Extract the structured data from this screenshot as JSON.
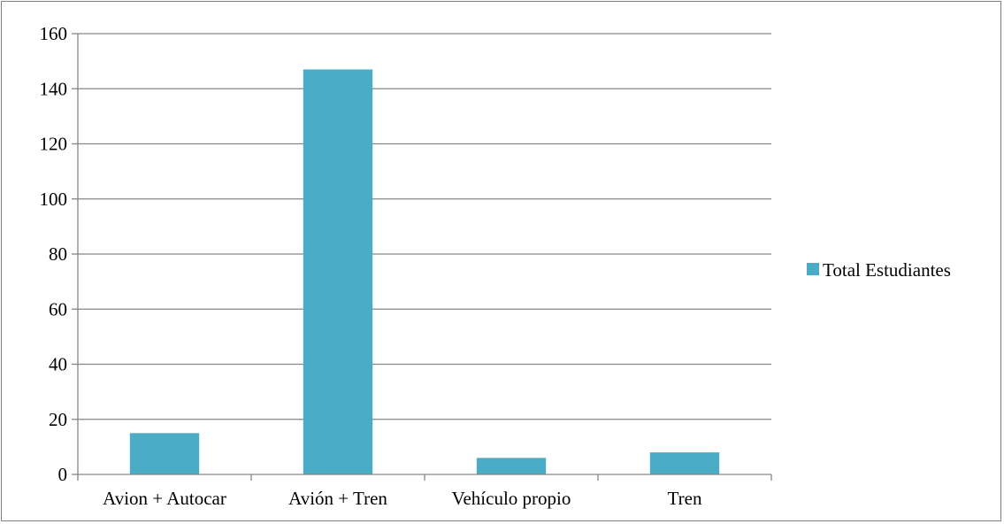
{
  "chart_data": {
    "type": "bar",
    "title": "",
    "xlabel": "",
    "ylabel": "",
    "categories": [
      "Avion + Autocar",
      "Avión + Tren",
      "Vehículo propio",
      "Tren"
    ],
    "series": [
      {
        "name": "Total Estudiantes",
        "values": [
          15,
          147,
          6,
          8
        ],
        "color": "#4bacc6"
      }
    ],
    "ylim": [
      0,
      160
    ],
    "yticks": [
      0,
      20,
      40,
      60,
      80,
      100,
      120,
      140,
      160
    ],
    "grid": true,
    "legend_position": "right"
  }
}
